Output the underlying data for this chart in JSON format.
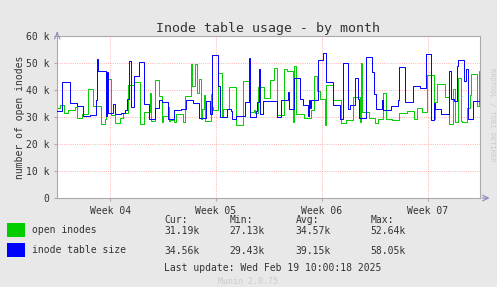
{
  "title": "Inode table usage - by month",
  "ylabel": "number of open inodes",
  "bg_color": "#e8e8e8",
  "plot_bg_color": "#ffffff",
  "grid_color": "#ff9999",
  "ylim": [
    0,
    60000
  ],
  "yticks": [
    0,
    10000,
    20000,
    30000,
    40000,
    50000,
    60000
  ],
  "ytick_labels": [
    "0",
    "10 k",
    "20 k",
    "30 k",
    "40 k",
    "50 k",
    "60 k"
  ],
  "xtick_labels": [
    "Week 04",
    "Week 05",
    "Week 06",
    "Week 07"
  ],
  "open_inodes_color": "#00cc00",
  "inode_table_color": "#0000ff",
  "text_color": "#333333",
  "axis_color": "#aaaaaa",
  "legend_label1": "open inodes",
  "legend_label2": "inode table size",
  "cur1": "31.19k",
  "min1": "27.13k",
  "avg1": "34.57k",
  "max1": "52.64k",
  "cur2": "34.56k",
  "min2": "29.43k",
  "avg2": "39.15k",
  "max2": "58.05k",
  "last_update": "Last update: Wed Feb 19 10:00:18 2025",
  "munin_version": "Munin 2.0.75",
  "rrdtool_label": "RRDTOOL / TOBI OETIKER",
  "watermark_color": "#cccccc",
  "n_points": 400
}
